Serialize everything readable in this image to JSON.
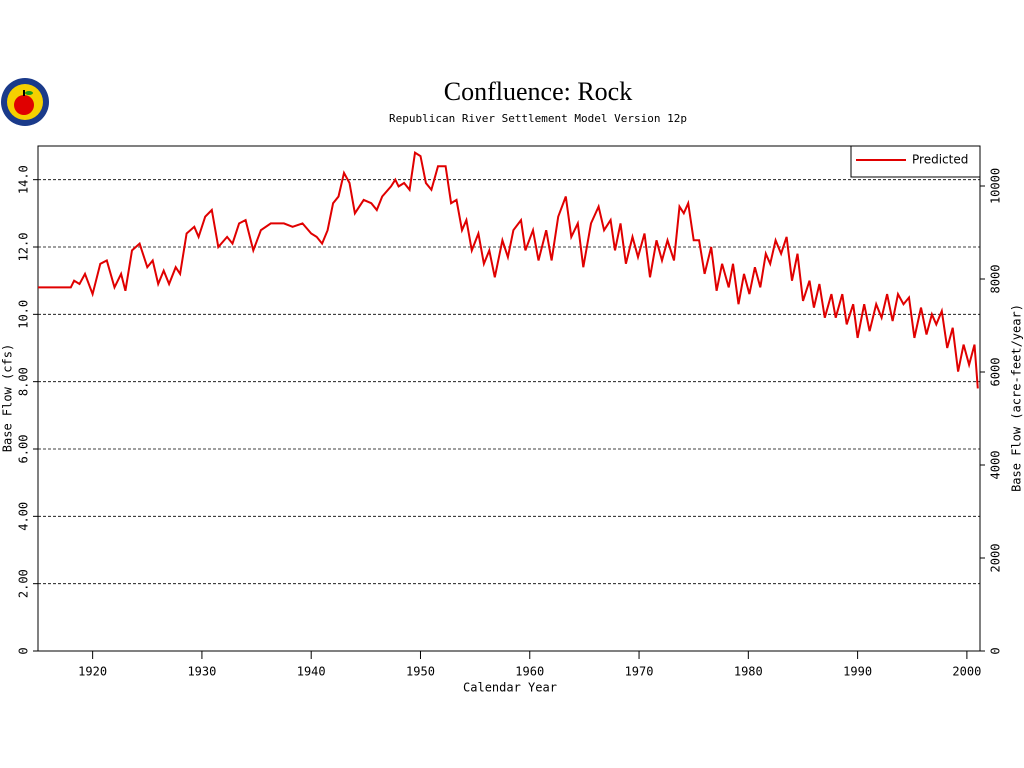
{
  "chart_data": {
    "type": "line",
    "title": "Confluence: Rock",
    "subtitle": "Republican River Settlement Model Version 12p",
    "x_label": "Calendar Year",
    "y_label": "Base Flow (cfs)",
    "y2_label": "Base Flow (acre-feet/year)",
    "x": [
      1915,
      1918,
      1918.3,
      1918.8,
      1919.3,
      1920,
      1920.7,
      1921.3,
      1922,
      1922.6,
      1923,
      1923.6,
      1924.3,
      1925,
      1925.5,
      1926,
      1926.5,
      1927,
      1927.6,
      1928,
      1928.6,
      1929.3,
      1929.7,
      1930.3,
      1930.9,
      1931.5,
      1932.3,
      1932.8,
      1933.4,
      1934,
      1934.7,
      1935.4,
      1936.3,
      1937.5,
      1938.3,
      1939.2,
      1940,
      1940.5,
      1941,
      1941.5,
      1942,
      1942.5,
      1943,
      1943.5,
      1944,
      1944.8,
      1945.5,
      1946,
      1946.5,
      1947.3,
      1947.7,
      1948,
      1948.5,
      1949,
      1949.5,
      1950,
      1950.5,
      1951,
      1951.6,
      1952.3,
      1952.8,
      1953.3,
      1953.8,
      1954.2,
      1954.7,
      1955.3,
      1955.8,
      1956.3,
      1956.8,
      1957.5,
      1958,
      1958.5,
      1959.2,
      1959.6,
      1960.3,
      1960.8,
      1961.5,
      1962,
      1962.6,
      1963.3,
      1963.8,
      1964.4,
      1964.9,
      1965.6,
      1966.3,
      1966.8,
      1967.4,
      1967.8,
      1968.3,
      1968.8,
      1969.4,
      1969.9,
      1970.5,
      1971,
      1971.6,
      1972.1,
      1972.6,
      1973.2,
      1973.7,
      1974.1,
      1974.5,
      1975,
      1975.5,
      1976,
      1976.6,
      1977.1,
      1977.6,
      1978.2,
      1978.6,
      1979.1,
      1979.6,
      1980.1,
      1980.6,
      1981.1,
      1981.6,
      1982,
      1982.5,
      1983,
      1983.5,
      1984,
      1984.5,
      1985,
      1985.6,
      1986,
      1986.5,
      1987,
      1987.6,
      1988,
      1988.6,
      1989,
      1989.6,
      1990,
      1990.6,
      1991.1,
      1991.7,
      1992.2,
      1992.7,
      1993.2,
      1993.7,
      1994.2,
      1994.7,
      1995.2,
      1995.8,
      1996.3,
      1996.8,
      1997.2,
      1997.7,
      1998.2,
      1998.7,
      1999.2,
      1999.7,
      2000.2,
      2000.7,
      2001
    ],
    "series": [
      {
        "name": "Predicted",
        "color": "#e00000",
        "values": [
          10.8,
          10.8,
          11.0,
          10.9,
          11.2,
          10.6,
          11.5,
          11.6,
          10.8,
          11.2,
          10.7,
          11.9,
          12.1,
          11.4,
          11.6,
          10.9,
          11.3,
          10.9,
          11.4,
          11.2,
          12.4,
          12.6,
          12.3,
          12.9,
          13.1,
          12.0,
          12.3,
          12.1,
          12.7,
          12.8,
          11.9,
          12.5,
          12.7,
          12.7,
          12.6,
          12.7,
          12.4,
          12.3,
          12.1,
          12.5,
          13.3,
          13.5,
          14.2,
          13.9,
          13.0,
          13.4,
          13.3,
          13.1,
          13.5,
          13.8,
          14.0,
          13.8,
          13.9,
          13.7,
          14.8,
          14.7,
          13.9,
          13.7,
          14.4,
          14.4,
          13.3,
          13.4,
          12.5,
          12.8,
          11.9,
          12.4,
          11.5,
          11.9,
          11.1,
          12.2,
          11.7,
          12.5,
          12.8,
          11.9,
          12.5,
          11.6,
          12.5,
          11.6,
          12.9,
          13.5,
          12.3,
          12.7,
          11.4,
          12.7,
          13.2,
          12.5,
          12.8,
          11.9,
          12.7,
          11.5,
          12.3,
          11.7,
          12.4,
          11.1,
          12.2,
          11.6,
          12.2,
          11.6,
          13.2,
          13.0,
          13.3,
          12.2,
          12.2,
          11.2,
          12.0,
          10.7,
          11.5,
          10.8,
          11.5,
          10.3,
          11.2,
          10.6,
          11.4,
          10.8,
          11.8,
          11.5,
          12.2,
          11.8,
          12.3,
          11.0,
          11.8,
          10.4,
          11.0,
          10.2,
          10.9,
          9.9,
          10.6,
          9.9,
          10.6,
          9.7,
          10.3,
          9.3,
          10.3,
          9.5,
          10.3,
          9.9,
          10.6,
          9.8,
          10.6,
          10.3,
          10.5,
          9.3,
          10.2,
          9.4,
          10.0,
          9.7,
          10.1,
          9.0,
          9.6,
          8.3,
          9.1,
          8.5,
          9.1,
          7.8
        ]
      }
    ],
    "xlim": [
      1915,
      2001.2
    ],
    "xticks": [
      1920,
      1930,
      1940,
      1950,
      1960,
      1970,
      1980,
      1990,
      2000
    ],
    "ylim": [
      0,
      15
    ],
    "yticks": [
      0,
      {
        "value": 2,
        "label": "2.00"
      },
      {
        "value": 4,
        "label": "4.00"
      },
      {
        "value": 6,
        "label": "6.00"
      },
      {
        "value": 8,
        "label": "8.00"
      },
      {
        "value": 10,
        "label": "10.0"
      },
      {
        "value": 12,
        "label": "12.0"
      },
      {
        "value": 14,
        "label": "14.0"
      }
    ],
    "y2lim": [
      0,
      10860
    ],
    "y2ticks": [
      0,
      2000,
      4000,
      6000,
      8000,
      10000
    ],
    "grid": true,
    "legend": "top-right"
  }
}
